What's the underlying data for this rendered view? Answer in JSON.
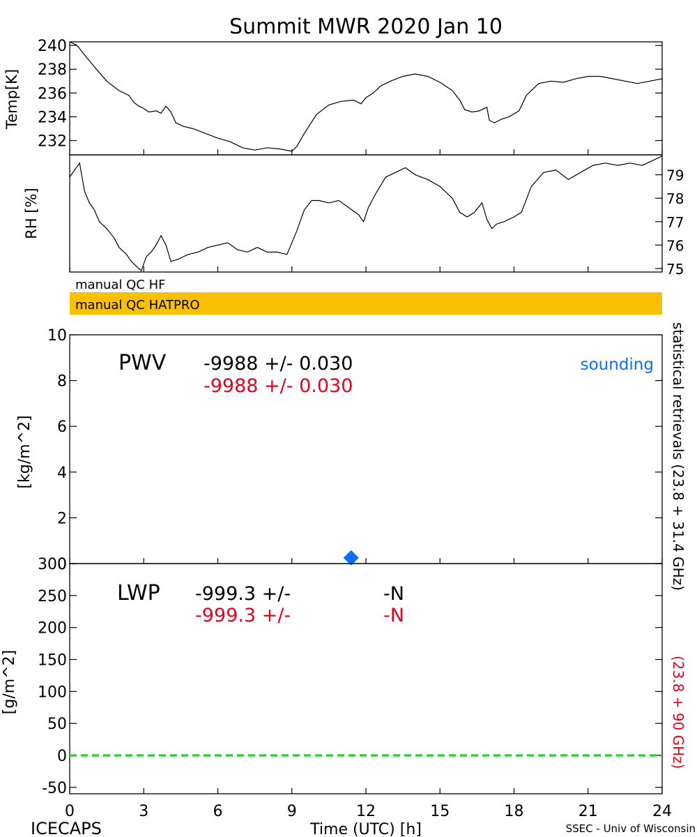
{
  "figure": {
    "title": "Summit MWR 2020 Jan 10",
    "footer_left": "ICECAPS",
    "footer_right": "SSEC - Univ of Wisconsin",
    "right_axis_label_black": "statistical retrievals (23.8 + 31.4 GHz)",
    "right_axis_label_red": "(23.8 + 90 GHz)",
    "colors": {
      "trace": "#000000",
      "hatpro_bar": "#fbc002",
      "red_text": "#e8001c",
      "sounding": "#0a6ff2",
      "lwp_zero_line": "#22dd22"
    }
  },
  "chart_data": [
    {
      "id": "temp",
      "type": "line",
      "ylabel": "Temp[K]",
      "xlim": [
        0,
        24
      ],
      "ylim": [
        230.8,
        240.3
      ],
      "yticks": [
        232,
        234,
        236,
        238,
        240
      ],
      "series": [
        {
          "x": [
            0,
            0.3,
            0.6,
            1.0,
            1.5,
            2.0,
            2.4,
            2.6,
            2.8,
            3.0,
            3.2,
            3.5,
            3.7,
            3.9,
            4.1,
            4.3,
            4.6,
            5.0,
            5.5,
            6.0,
            6.5,
            7.0,
            7.5,
            8.0,
            8.5,
            9.0,
            9.2,
            9.5,
            10.0,
            10.5,
            11.0,
            11.5,
            11.8,
            12.0,
            12.3,
            12.6,
            13.0,
            13.5,
            14.0,
            14.5,
            15.0,
            15.5,
            15.8,
            16.0,
            16.3,
            16.6,
            16.9,
            17.0,
            17.2,
            17.5,
            17.8,
            18.2,
            18.5,
            19.0,
            19.5,
            20.0,
            20.5,
            21.0,
            21.5,
            22.0,
            22.5,
            23.0,
            23.5,
            24.0
          ],
          "values": [
            240.3,
            240.0,
            239.2,
            238.2,
            237.0,
            236.2,
            235.8,
            235.2,
            234.9,
            234.7,
            234.4,
            234.5,
            234.3,
            234.9,
            234.4,
            233.5,
            233.2,
            233.0,
            232.6,
            232.2,
            231.9,
            231.4,
            231.2,
            231.4,
            231.3,
            231.1,
            231.5,
            232.6,
            234.2,
            235.0,
            235.3,
            235.4,
            235.1,
            235.6,
            236.0,
            236.6,
            237.0,
            237.4,
            237.6,
            237.4,
            236.9,
            236.2,
            235.4,
            234.6,
            234.4,
            234.5,
            234.8,
            233.7,
            233.5,
            233.8,
            234.0,
            234.5,
            235.8,
            236.8,
            237.0,
            236.9,
            237.2,
            237.4,
            237.4,
            237.2,
            237.0,
            236.8,
            237.0,
            237.2
          ]
        }
      ]
    },
    {
      "id": "rh",
      "type": "line",
      "ylabel": "RH [%]",
      "xlim": [
        0,
        24
      ],
      "ylim": [
        74.85,
        79.85
      ],
      "yticks": [
        75,
        76,
        77,
        78,
        79
      ],
      "series": [
        {
          "x": [
            0,
            0.2,
            0.4,
            0.5,
            0.6,
            0.8,
            1.0,
            1.2,
            1.5,
            1.8,
            2.0,
            2.3,
            2.5,
            2.7,
            2.9,
            3.1,
            3.3,
            3.5,
            3.7,
            3.9,
            4.1,
            4.4,
            4.8,
            5.2,
            5.6,
            6.0,
            6.4,
            6.8,
            7.2,
            7.6,
            8.0,
            8.4,
            8.8,
            9.2,
            9.5,
            9.8,
            10.1,
            10.5,
            10.9,
            11.3,
            11.7,
            11.9,
            12.1,
            12.4,
            12.8,
            13.2,
            13.6,
            14.0,
            14.5,
            15.0,
            15.5,
            15.8,
            16.1,
            16.4,
            16.7,
            16.9,
            17.1,
            17.3,
            17.6,
            18.0,
            18.3,
            18.7,
            19.2,
            19.7,
            20.2,
            20.7,
            21.2,
            21.7,
            22.2,
            22.7,
            23.2,
            23.6,
            24.0
          ],
          "values": [
            78.9,
            79.2,
            79.5,
            78.9,
            78.3,
            77.8,
            77.5,
            77.0,
            76.7,
            76.3,
            75.9,
            75.6,
            75.3,
            75.1,
            74.9,
            75.5,
            75.7,
            76.0,
            76.4,
            76.0,
            75.3,
            75.4,
            75.6,
            75.7,
            75.9,
            76.0,
            76.1,
            75.8,
            75.7,
            75.9,
            75.7,
            75.7,
            75.6,
            76.6,
            77.5,
            77.9,
            77.9,
            77.8,
            77.9,
            77.6,
            77.3,
            77.0,
            77.6,
            78.2,
            78.9,
            79.1,
            79.3,
            79.0,
            78.8,
            78.5,
            78.0,
            77.4,
            77.2,
            77.4,
            77.8,
            77.1,
            76.7,
            76.9,
            77.0,
            77.2,
            77.4,
            78.5,
            79.1,
            79.2,
            78.8,
            79.1,
            79.4,
            79.5,
            79.4,
            79.5,
            79.4,
            79.6,
            79.8
          ]
        }
      ]
    },
    {
      "id": "pwv",
      "type": "scatter",
      "label": "PWV",
      "ylabel": "[kg/m^2]",
      "xlim": [
        0,
        24
      ],
      "ylim": [
        0,
        10
      ],
      "yticks": [
        0,
        2,
        4,
        6,
        8,
        10
      ],
      "stat_black": "-9988 +/- 0.030",
      "stat_red": "-9988 +/- 0.030",
      "legend": "sounding",
      "sounding_points": [
        {
          "x": 11.4,
          "y": 0.25
        }
      ]
    },
    {
      "id": "lwp",
      "type": "line",
      "label": "LWP",
      "ylabel": "[g/m^2]",
      "xlabel": "Time (UTC) [h]",
      "xlim": [
        0,
        24
      ],
      "ylim": [
        -60,
        300
      ],
      "yticks": [
        -50,
        0,
        50,
        100,
        150,
        200,
        250,
        300
      ],
      "xticks": [
        0,
        3,
        6,
        9,
        12,
        15,
        18,
        21,
        24
      ],
      "stat_black": "-999.3 +/-",
      "stat_black_n": "-N",
      "stat_red": "-999.3 +/-",
      "stat_red_n": "-N",
      "zero_line": {
        "x": [
          0,
          24
        ],
        "y": [
          0,
          0
        ]
      }
    }
  ],
  "qc_bars": [
    {
      "label": "manual QC HF",
      "color": "#ffffff"
    },
    {
      "label": "manual QC HATPRO",
      "color": "#fbc002"
    }
  ]
}
